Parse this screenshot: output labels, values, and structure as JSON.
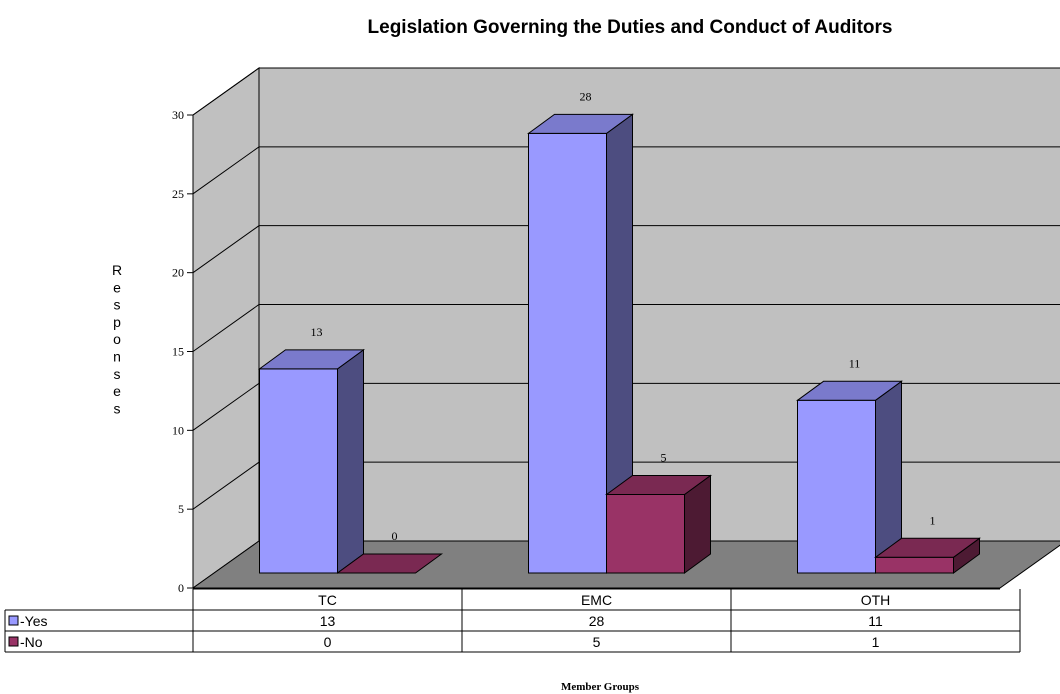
{
  "chart_data": {
    "type": "bar",
    "title": "Legislation Governing the Duties and Conduct of Auditors",
    "xlabel": "Member Groups",
    "ylabel": "Responses",
    "categories": [
      "TC",
      "EMC",
      "OTH"
    ],
    "series": [
      {
        "name": "-Yes",
        "values": [
          13,
          28,
          11
        ],
        "color": "#9999ff",
        "top_color": "#7a7acc",
        "side_color": "#4d4d80"
      },
      {
        "name": "-No",
        "values": [
          0,
          5,
          1
        ],
        "color": "#993366",
        "top_color": "#7a2952",
        "side_color": "#4d1a33"
      }
    ],
    "ylim": [
      0,
      30
    ],
    "yticks": [
      0,
      5,
      10,
      15,
      20,
      25,
      30
    ],
    "grid": true,
    "data_table": true,
    "colors": {
      "wall": "#c0c0c0",
      "floor": "#808080"
    }
  }
}
